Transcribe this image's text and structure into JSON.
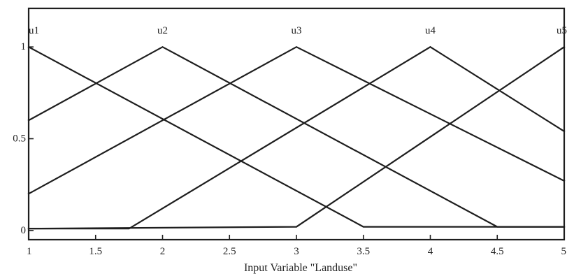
{
  "chart_data": {
    "type": "line",
    "title": "",
    "xlabel": "Input Variable \"Landuse\"",
    "ylabel": "",
    "xlim": [
      1,
      5
    ],
    "ylim": [
      -0.05,
      1.21
    ],
    "grid": false,
    "legend": "none",
    "x_ticks": [
      {
        "value": 1,
        "label": "1"
      },
      {
        "value": 1.5,
        "label": "1.5"
      },
      {
        "value": 2,
        "label": "2"
      },
      {
        "value": 2.5,
        "label": "2.5"
      },
      {
        "value": 3,
        "label": "3"
      },
      {
        "value": 3.5,
        "label": "3.5"
      },
      {
        "value": 4,
        "label": "4"
      },
      {
        "value": 4.5,
        "label": "4.5"
      },
      {
        "value": 5,
        "label": "5"
      }
    ],
    "y_ticks": [
      {
        "value": 0,
        "label": "0"
      },
      {
        "value": 0.5,
        "label": "0.5"
      },
      {
        "value": 1,
        "label": "1"
      }
    ],
    "series": [
      {
        "name": "u1",
        "label_x": 1,
        "x": [
          1,
          3.5,
          5
        ],
        "y": [
          1,
          0.02,
          0.02
        ]
      },
      {
        "name": "u2",
        "label_x": 2,
        "x": [
          1,
          2,
          4.5,
          5
        ],
        "y": [
          0.6,
          1,
          0.02,
          0.02
        ]
      },
      {
        "name": "u3",
        "label_x": 3,
        "x": [
          1,
          3,
          5
        ],
        "y": [
          0.2,
          1,
          0.27
        ]
      },
      {
        "name": "u4",
        "label_x": 4,
        "x": [
          1,
          1.75,
          4,
          5
        ],
        "y": [
          0.01,
          0.01,
          1,
          0.54
        ]
      },
      {
        "name": "u5",
        "label_x": 5,
        "x": [
          1,
          3,
          5
        ],
        "y": [
          0.01,
          0.02,
          1
        ]
      }
    ]
  }
}
